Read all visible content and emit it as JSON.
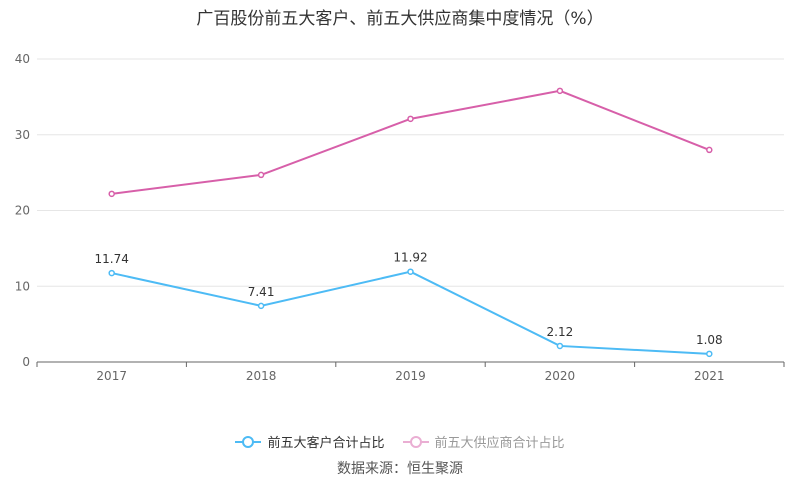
{
  "chart_data": {
    "type": "line",
    "title": "广百股份前五大客户、前五大供应商集中度情况（%）",
    "categories": [
      "2017",
      "2018",
      "2019",
      "2020",
      "2021"
    ],
    "ylim": [
      0,
      40
    ],
    "yticks": [
      0,
      10,
      20,
      30,
      40
    ],
    "grid": true,
    "legend_position": "bottom",
    "series": [
      {
        "name": "前五大客户合计占比",
        "color": "#4dbbf5",
        "values": [
          11.74,
          7.41,
          11.92,
          2.12,
          1.08
        ],
        "labels": [
          "11.74",
          "7.41",
          "11.92",
          "2.12",
          "1.08"
        ]
      },
      {
        "name": "前五大供应商合计占比",
        "color": "#d75fa9",
        "values": [
          22.2,
          24.7,
          32.1,
          35.8,
          28.0
        ]
      }
    ],
    "source": "数据来源：恒生聚源"
  }
}
